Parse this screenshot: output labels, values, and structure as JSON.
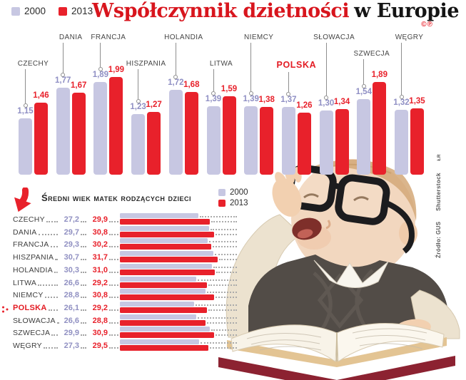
{
  "colors": {
    "red": "#e8212b",
    "lavender": "#c7c7e2",
    "title_red": "#d8151d",
    "purple_value_text": "#8f8fc4",
    "dark_text": "#454545"
  },
  "title": {
    "red_part": "Współczynnik dzietności",
    "black_part": "w Europie",
    "copyright": "©℗"
  },
  "legend_top": {
    "y2000": "2000",
    "y2013": "2013"
  },
  "age_section": {
    "title": "Średni wiek matek rodzących dzieci",
    "legend": {
      "y2000": "2000",
      "y2013": "2013"
    }
  },
  "source_credit": {
    "source": "Źródło: GUS",
    "agency": "Shutterstock",
    "initials": "ŁR"
  },
  "chart_data": [
    {
      "type": "bar",
      "orientation": "vertical",
      "title": "Współczynnik dzietności w Europie",
      "legend_position": "top-left",
      "grid": false,
      "ylim": [
        0,
        2.1
      ],
      "categories": [
        "CZECHY",
        "DANIA",
        "FRANCJA",
        "HISZPANIA",
        "HOLANDIA",
        "LITWA",
        "NIEMCY",
        "POLSKA",
        "SŁOWACJA",
        "SZWECJA",
        "WĘGRY"
      ],
      "series": [
        {
          "name": "2000",
          "values": [
            1.15,
            1.77,
            1.89,
            1.23,
            1.72,
            1.39,
            1.39,
            1.37,
            1.3,
            1.54,
            1.32
          ]
        },
        {
          "name": "2013",
          "values": [
            1.46,
            1.67,
            1.99,
            1.27,
            1.68,
            1.59,
            1.38,
            1.26,
            1.34,
            1.89,
            1.35
          ]
        }
      ],
      "decimal_separator": ",",
      "highlight_category": "POLSKA",
      "label_levels": [
        1,
        0,
        0,
        1,
        0,
        1,
        0,
        1,
        0,
        2,
        0
      ]
    },
    {
      "type": "bar",
      "orientation": "horizontal",
      "title": "Średni wiek matek rodzących dzieci",
      "legend_position": "top-right",
      "grid": false,
      "categories": [
        "CZECHY",
        "DANIA",
        "FRANCJA",
        "HISZPANIA",
        "HOLANDIA",
        "LITWA",
        "NIEMCY",
        "POLSKA",
        "SŁOWACJA",
        "SZWECJA",
        "WĘGRY"
      ],
      "series": [
        {
          "name": "2000",
          "values": [
            27.2,
            29.7,
            29.3,
            30.7,
            30.3,
            26.6,
            28.8,
            26.1,
            26.6,
            29.9,
            27.3
          ]
        },
        {
          "name": "2013",
          "values": [
            29.9,
            30.8,
            30.2,
            31.7,
            31.0,
            29.2,
            30.8,
            29.2,
            28.8,
            30.9,
            29.5
          ]
        }
      ],
      "decimal_separator": ",",
      "highlight_category": "POLSKA"
    }
  ]
}
